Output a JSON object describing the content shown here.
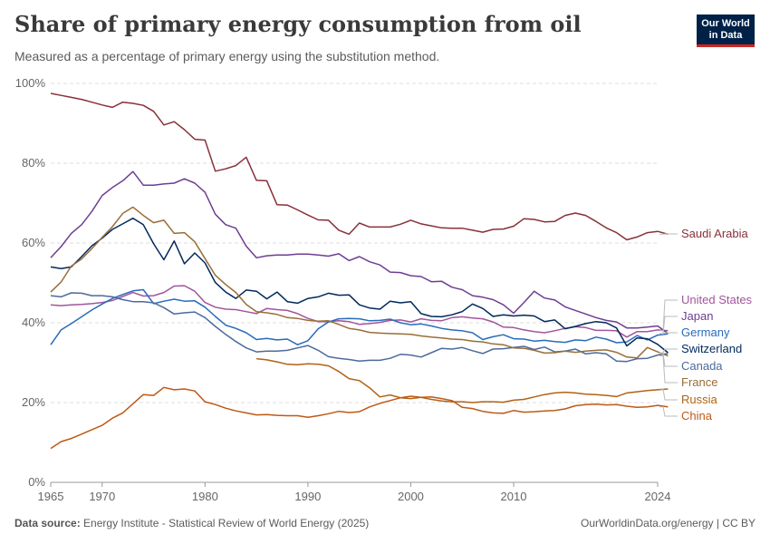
{
  "header": {
    "title": "Share of primary energy consumption from oil",
    "subtitle": "Measured as a percentage of primary energy using the substitution method."
  },
  "logo": {
    "line1": "Our World",
    "line2": "in Data"
  },
  "footer": {
    "source_label": "Data source:",
    "source_text": "Energy Institute - Statistical Review of World Energy (2025)",
    "credit": "OurWorldinData.org/energy | CC BY"
  },
  "chart_data": {
    "type": "line",
    "title": "Share of primary energy consumption from oil",
    "xlim": [
      1965,
      2024
    ],
    "ylim": [
      0,
      100
    ],
    "x_ticks": [
      1965,
      1970,
      1980,
      1990,
      2000,
      2010,
      2024
    ],
    "y_ticks": [
      0,
      20,
      40,
      60,
      80,
      100
    ],
    "y_tick_labels": [
      "0%",
      "20%",
      "40%",
      "60%",
      "80%",
      "100%"
    ],
    "grid": "horizontal-dashed",
    "legend": "right-end-labels",
    "series": [
      {
        "name": "Saudi Arabia",
        "color": "#883039",
        "x_start": 1965,
        "values": [
          97.5,
          97,
          96.5,
          96,
          95.3,
          94.6,
          94,
          95.3,
          95,
          94.5,
          93,
          89.6,
          90.4,
          88.4,
          86,
          85.8,
          78,
          78.6,
          79.4,
          81.5,
          75.7,
          75.6,
          69.6,
          69.5,
          68.3,
          67,
          65.8,
          65.7,
          63.2,
          62.2,
          65,
          64,
          64,
          64,
          64.7,
          65.7,
          64.8,
          64.3,
          63.8,
          63.7,
          63.7,
          63.2,
          62.7,
          63.4,
          63.5,
          64.2,
          66.1,
          65.9,
          65.3,
          65.4,
          66.9,
          67.5,
          66.9,
          65.4,
          63.8,
          62.6,
          60.8,
          61.5,
          62.6,
          62.9,
          62.2
        ]
      },
      {
        "name": "United States",
        "color": "#a2559c",
        "x_start": 1965,
        "values": [
          44.5,
          44.3,
          44.5,
          44.6,
          44.8,
          45.1,
          45.6,
          46.6,
          47.6,
          46.7,
          46.8,
          47.6,
          49.2,
          49.3,
          47.9,
          45.1,
          43.9,
          43.4,
          43.3,
          42.8,
          42.3,
          43.6,
          43.3,
          43.1,
          42.3,
          41.1,
          40.3,
          40.3,
          40.5,
          40.3,
          39.6,
          39.8,
          40.1,
          40.6,
          40.7,
          40.2,
          41,
          40.6,
          40.5,
          41.3,
          41.5,
          41.2,
          41,
          40.2,
          38.9,
          38.8,
          38.2,
          37.8,
          37.5,
          38,
          38.6,
          39,
          38.8,
          38.1,
          38.1,
          38,
          36.4,
          37.8,
          37.8,
          38.2,
          38
        ]
      },
      {
        "name": "Japan",
        "color": "#6d3e91",
        "x_start": 1965,
        "values": [
          56.3,
          59.1,
          62.4,
          64.6,
          67.9,
          71.9,
          73.9,
          75.6,
          77.9,
          74.5,
          74.5,
          74.8,
          75,
          76.1,
          75,
          72.7,
          67.2,
          64.6,
          63.7,
          59.2,
          56.3,
          56.8,
          57,
          57,
          57.2,
          57.2,
          57,
          56.7,
          57.3,
          55.6,
          56.6,
          55.3,
          54.5,
          52.7,
          52.6,
          51.8,
          51.6,
          50.3,
          50.4,
          48.9,
          48.3,
          46.8,
          46.4,
          45.8,
          44.5,
          42.4,
          45.1,
          47.9,
          46.2,
          45.7,
          44,
          43.1,
          42.2,
          41.3,
          40.6,
          40.2,
          38.7,
          38.7,
          38.9,
          39.2,
          37.3
        ]
      },
      {
        "name": "Germany",
        "color": "#286bbb",
        "x_start": 1965,
        "values": [
          34.5,
          38.2,
          39.8,
          41.5,
          43.2,
          44.7,
          46.1,
          47.1,
          48,
          48.3,
          44.8,
          45.4,
          45.9,
          45.4,
          45.5,
          43.9,
          41.6,
          39.4,
          38.6,
          37.5,
          35.8,
          36.1,
          35.7,
          35.9,
          34.5,
          35.5,
          38.5,
          40.2,
          41,
          41.1,
          41,
          40.5,
          40.6,
          40.9,
          40,
          39.5,
          39.7,
          39.2,
          38.6,
          38.2,
          38,
          37.5,
          35.8,
          36.5,
          37,
          36,
          35.9,
          35.4,
          35.6,
          35.3,
          35.1,
          35.7,
          35.5,
          36.4,
          35.9,
          35,
          35.2,
          36.8,
          35.7,
          36.9,
          37.2
        ]
      },
      {
        "name": "Switzerland",
        "color": "#00295b",
        "x_start": 1965,
        "values": [
          54,
          53.6,
          54,
          56.6,
          59.3,
          61.2,
          63.4,
          64.8,
          66.2,
          64.6,
          59.8,
          55.8,
          60.5,
          54.8,
          57.5,
          55,
          50.1,
          47.7,
          46.1,
          48.2,
          47.9,
          46,
          47.7,
          45.3,
          44.9,
          46.1,
          46.5,
          47.4,
          46.9,
          47,
          44.5,
          43.7,
          43.4,
          45.4,
          45,
          45.3,
          42.3,
          41.6,
          41.5,
          42,
          42.8,
          44.7,
          43.6,
          41.6,
          42,
          41.7,
          41.9,
          41.7,
          40.3,
          40.7,
          38.5,
          39.1,
          39.8,
          40.3,
          40,
          38.7,
          34.2,
          36.2,
          36,
          34.6,
          32.5
        ]
      },
      {
        "name": "Canada",
        "color": "#4c6a9c",
        "x_start": 1965,
        "values": [
          46.8,
          46.5,
          47.5,
          47.4,
          46.8,
          46.8,
          46.5,
          45.8,
          45.3,
          45.3,
          45,
          43.8,
          42.2,
          42.5,
          42.7,
          41.3,
          39.1,
          37.1,
          35.3,
          33.7,
          32.7,
          32.9,
          32.9,
          33.1,
          33.7,
          34.3,
          33.1,
          31.5,
          31.1,
          30.8,
          30.4,
          30.6,
          30.6,
          31.1,
          32.1,
          31.9,
          31.4,
          32.5,
          33.6,
          33.4,
          33.8,
          33,
          32.3,
          33.4,
          33.5,
          33.8,
          34.1,
          33.3,
          33.9,
          32.7,
          32.9,
          33.4,
          32.2,
          32.5,
          32.2,
          30.4,
          30.3,
          31,
          31.1,
          31.9,
          32.3
        ]
      },
      {
        "name": "France",
        "color": "#996d39",
        "x_start": 1965,
        "values": [
          47.7,
          50.2,
          54.2,
          56,
          58.6,
          61.4,
          64.1,
          67.4,
          69,
          66.9,
          65.1,
          65.7,
          62.4,
          62.6,
          60.3,
          56.1,
          51.9,
          49.6,
          47.6,
          44.6,
          42.8,
          42.5,
          42.1,
          41.3,
          41.1,
          40.6,
          40.4,
          40.5,
          39.6,
          38.6,
          38.2,
          37.6,
          37.4,
          37.3,
          37.2,
          37.1,
          36.7,
          36.4,
          36.2,
          35.9,
          35.8,
          35.4,
          35.2,
          34.7,
          34.5,
          33.7,
          33.6,
          33.1,
          32.4,
          32.5,
          32.9,
          32.6,
          32.9,
          33.1,
          33.2,
          32.6,
          31.4,
          31.2,
          33.8,
          32.7,
          31.7
        ]
      },
      {
        "name": "Russia",
        "color": "#b16214",
        "x_start": 1985,
        "values": [
          31,
          30.7,
          30.2,
          29.6,
          29.5,
          29.7,
          29.6,
          29.2,
          27.8,
          26,
          25.5,
          23.7,
          21.4,
          21.9,
          21.2,
          21,
          21.3,
          20.8,
          20.4,
          20.2,
          20.2,
          20,
          20.2,
          20.2,
          20.1,
          20.6,
          20.8,
          21.4,
          22,
          22.4,
          22.6,
          22.4,
          22.1,
          22,
          21.8,
          21.5,
          22.4,
          22.7,
          23,
          23.2,
          23.4
        ]
      },
      {
        "name": "China",
        "color": "#be5915",
        "x_start": 1965,
        "values": [
          8.5,
          10.2,
          11,
          12.1,
          13.2,
          14.3,
          16.1,
          17.4,
          19.7,
          22,
          21.8,
          23.8,
          23.2,
          23.4,
          22.9,
          20.2,
          19.5,
          18.6,
          17.9,
          17.4,
          16.9,
          17,
          16.8,
          16.7,
          16.7,
          16.3,
          16.7,
          17.2,
          17.8,
          17.5,
          17.7,
          18.9,
          19.8,
          20.5,
          21.2,
          21.6,
          21.3,
          21.4,
          21,
          20.5,
          18.8,
          18.5,
          17.8,
          17.4,
          17.3,
          18,
          17.6,
          17.7,
          17.9,
          18,
          18.4,
          19.2,
          19.5,
          19.6,
          19.4,
          19.5,
          19.1,
          18.8,
          18.9,
          19.3,
          18.9
        ]
      }
    ]
  }
}
